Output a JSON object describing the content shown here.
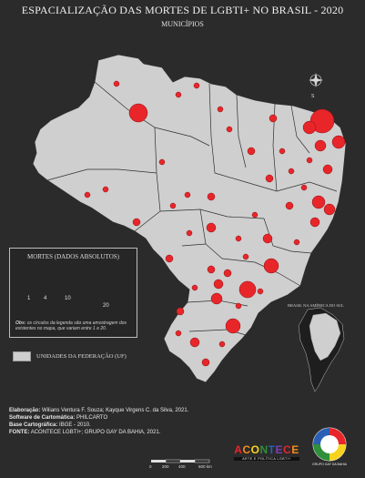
{
  "map": {
    "title": "ESPACIALIZAÇÃO DAS MORTES DE LGBTI+ NO BRASIL - 2020",
    "subtitle": "MUNICÍPIOS",
    "land_color": "#cfcfcf",
    "border_color": "#2f2f2f",
    "marker_color": "#e8262a",
    "compass_label": "S",
    "inset_label": "BRASIL NA AMÉRICA DO SUL"
  },
  "legend": {
    "title": "MORTES (DADOS ABSOLUTOS)",
    "sizes": [
      {
        "label": "1",
        "value": 1
      },
      {
        "label": "4",
        "value": 4
      },
      {
        "label": "10",
        "value": 10
      },
      {
        "label": "20",
        "value": 20
      }
    ],
    "note_bold": "Obs:",
    "note_text": "os círculos da legenda são uma amostragem dos existentes no mapa, que variam entre 1 e 20.",
    "uf_label": "UNIDADES DA FEDERAÇÃO (UF)"
  },
  "credits": [
    {
      "label": "Elaboração:",
      "value": "Wilians Ventura F. Souza; Kayque Virgens C. da Silva, 2021."
    },
    {
      "label": "Software de Cartomática:",
      "value": "PHILCARTO"
    },
    {
      "label": "Base Cartográfica:",
      "value": "IBGE - 2010."
    },
    {
      "label": "FONTE:",
      "value": "ACONTECE LGBTI+; GRUPO GAY DA BAHIA, 2021."
    }
  ],
  "scale": {
    "ticks": [
      "0",
      "200",
      "400",
      "600 km"
    ]
  },
  "logos": {
    "acontece_word": "ACONTECE",
    "acontece_sub": "ARTE E POLÍTICA LGBTI+",
    "ggb_letters": "GGB",
    "ggb_sub": "GRUPO GAY DA BAHIA"
  }
}
